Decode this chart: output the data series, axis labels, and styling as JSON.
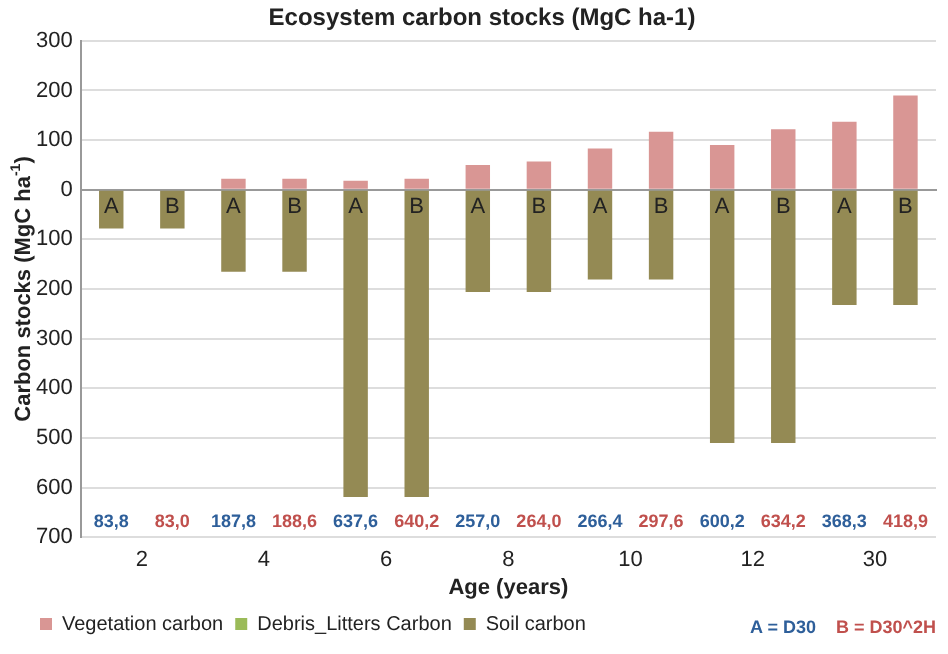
{
  "chart_data": {
    "type": "bar",
    "title": "Ecosystem carbon stocks (MgC ha-1)",
    "xlabel": "Age (years)",
    "ylabel": "Carbon stocks (MgC ha$^{-1}$)",
    "categories": [
      "A",
      "B",
      "A",
      "B",
      "A",
      "B",
      "A",
      "B",
      "A",
      "B",
      "A",
      "B",
      "A",
      "B"
    ],
    "series": [
      {
        "name": "Vegetation carbon",
        "color": "#d99694",
        "values": [
          null,
          null,
          22,
          22,
          18,
          22,
          50,
          57,
          83,
          117,
          90,
          122,
          137,
          190
        ]
      },
      {
        "name": "Debris_Litters Carbon",
        "color": "#9bbb59",
        "values": [
          null,
          null,
          null,
          null,
          null,
          null,
          null,
          null,
          null,
          null,
          null,
          null,
          null,
          null
        ]
      },
      {
        "name": "Soil carbon",
        "color": "#948a54",
        "values": [
          -78,
          -78,
          -165,
          -165,
          -619,
          -619,
          -206,
          -206,
          -181,
          -181,
          -510,
          -510,
          -232,
          -232
        ]
      }
    ],
    "stacked": true,
    "annotations": [
      "83,8",
      "83,0",
      "187,8",
      "188,6",
      "637,6",
      "640,2",
      "257,0",
      "264,0",
      "266,4",
      "297,6",
      "600,2",
      "634,2",
      "368,3",
      "418,9",
      "2",
      "4",
      "6",
      "8",
      "10",
      "12",
      "30",
      "A = D30",
      "B = D30^2H"
    ],
    "ylim": [
      -700,
      300
    ],
    "yticks": [
      300,
      200,
      100,
      0,
      {
        "value": -100,
        "label": "100"
      },
      {
        "value": -200,
        "label": "200"
      },
      {
        "value": -300,
        "label": "300"
      },
      {
        "value": -400,
        "label": "400"
      },
      {
        "value": -500,
        "label": "500"
      },
      {
        "value": -600,
        "label": "600"
      },
      {
        "value": -700,
        "label": "700"
      }
    ],
    "grid": "y",
    "legend": "bottom"
  }
}
